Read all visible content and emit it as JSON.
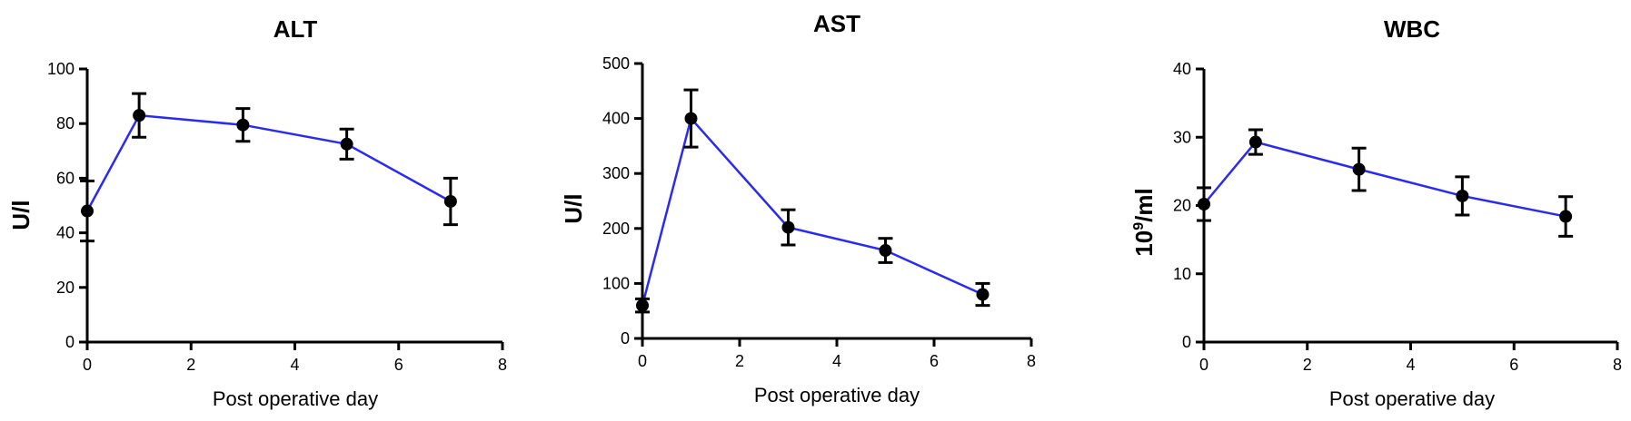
{
  "chart_data": [
    {
      "type": "line",
      "title": "ALT",
      "xlabel": "Post operative day",
      "ylabel": "U/l",
      "xlim": [
        0,
        8
      ],
      "ylim": [
        0,
        100
      ],
      "xticks": [
        0,
        2,
        4,
        6,
        8
      ],
      "yticks": [
        0,
        20,
        40,
        60,
        80,
        100
      ],
      "grid": false,
      "x": [
        0,
        1,
        3,
        5,
        7
      ],
      "y": [
        48,
        83,
        79.5,
        72.5,
        51.5
      ],
      "err": [
        11,
        8,
        6,
        5.5,
        8.5
      ],
      "color": "#2b2bf0"
    },
    {
      "type": "line",
      "title": "AST",
      "xlabel": "Post operative day",
      "ylabel": "U/l",
      "xlim": [
        0,
        8
      ],
      "ylim": [
        0,
        500
      ],
      "xticks": [
        0,
        2,
        4,
        6,
        8
      ],
      "yticks": [
        0,
        100,
        200,
        300,
        400,
        500
      ],
      "grid": false,
      "x": [
        0,
        1,
        3,
        5,
        7
      ],
      "y": [
        60,
        400,
        202,
        160,
        80
      ],
      "err": [
        12,
        52,
        32,
        22,
        20
      ],
      "color": "#2b2bf0"
    },
    {
      "type": "line",
      "title": "WBC",
      "xlabel": "Post operative day",
      "ylabel_base": "10",
      "ylabel_sup": "9",
      "ylabel_unit": "/ml",
      "xlim": [
        0,
        8
      ],
      "ylim": [
        0,
        40
      ],
      "xticks": [
        0,
        2,
        4,
        6,
        8
      ],
      "yticks": [
        0,
        10,
        20,
        30,
        40
      ],
      "grid": false,
      "x": [
        0,
        1,
        3,
        5,
        7
      ],
      "y": [
        20.2,
        29.3,
        25.3,
        21.4,
        18.4
      ],
      "err": [
        2.4,
        1.8,
        3.1,
        2.8,
        2.9
      ],
      "color": "#2b2bf0"
    }
  ]
}
